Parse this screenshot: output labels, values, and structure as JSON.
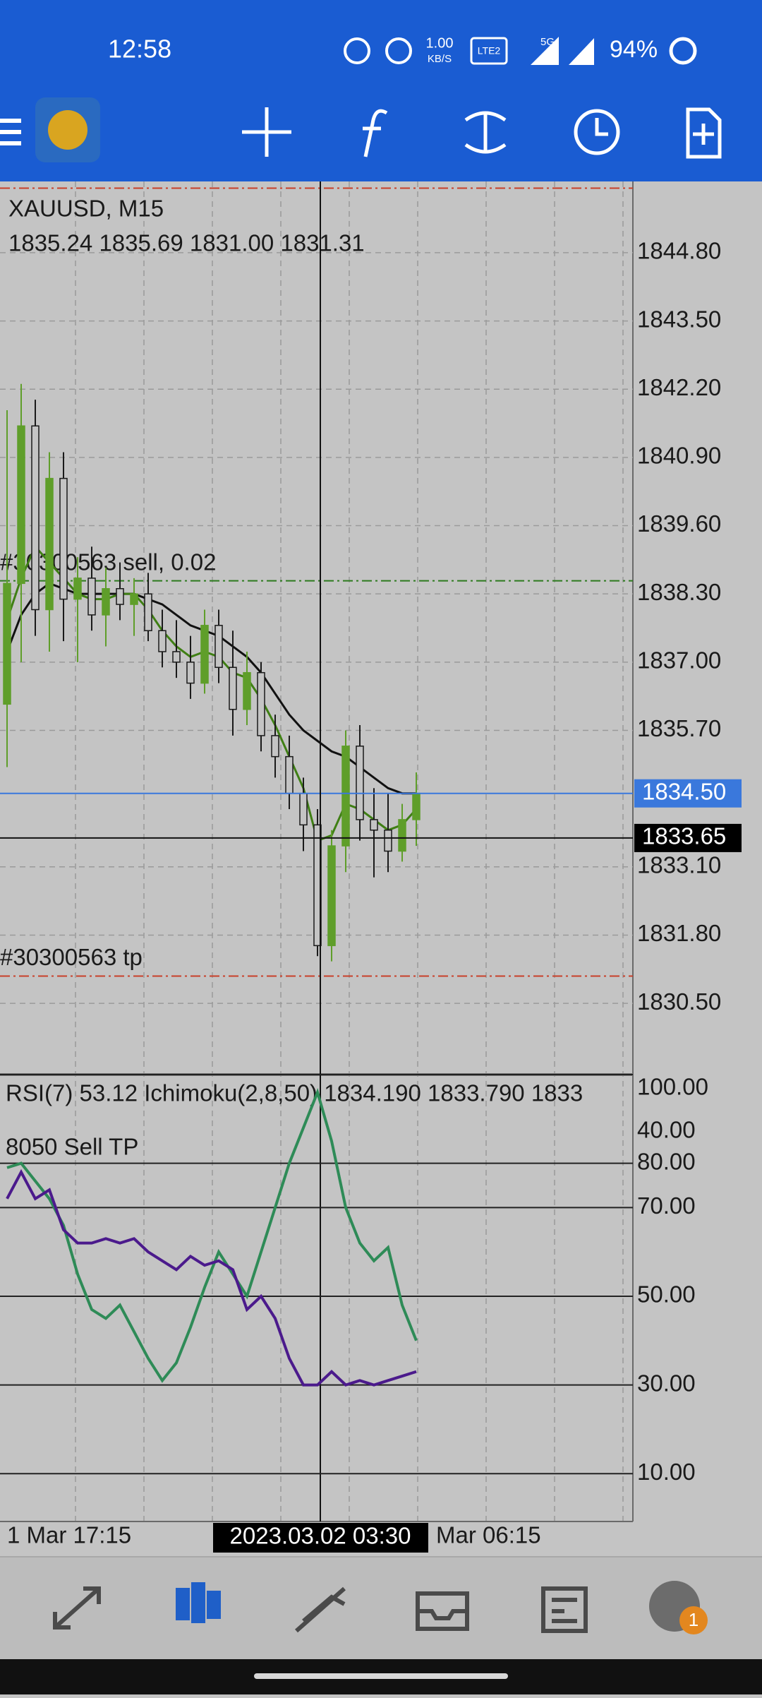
{
  "status_bar": {
    "time": "12:58",
    "speed_value": "1.00",
    "speed_unit": "KB/S",
    "network": "5G",
    "volte": "LTE2",
    "battery": "94%"
  },
  "chart_info": {
    "symbol": "XAUUSD, M15",
    "ohlc": "1835.24 1835.69 1831.00 1831.31"
  },
  "chart_data": [
    {
      "type": "candlestick",
      "ylim": [
        1829.17,
        1846.09
      ],
      "yticks": [
        {
          "value": 1844.8,
          "label": "1844.80"
        },
        {
          "value": 1843.5,
          "label": "1843.50"
        },
        {
          "value": 1842.2,
          "label": "1842.20"
        },
        {
          "value": 1840.9,
          "label": "1840.90"
        },
        {
          "value": 1839.6,
          "label": "1839.60"
        },
        {
          "value": 1838.3,
          "label": "1838.30"
        },
        {
          "value": 1837,
          "label": "1837.00"
        },
        {
          "value": 1835.7,
          "label": "1835.70"
        },
        {
          "value": 1833.1,
          "label": "1833.10"
        },
        {
          "value": 1831.8,
          "label": "1831.80"
        },
        {
          "value": 1830.5,
          "label": "1830.50"
        }
      ],
      "grid": true,
      "up_color": "#5f9e2a",
      "down_color": "#1a1a1a",
      "open": [
        1836.2,
        1838.5,
        1841.5,
        1838.0,
        1840.5,
        1838.2,
        1838.6,
        1837.9,
        1838.4,
        1838.1,
        1838.3,
        1837.6,
        1837.2,
        1837.0,
        1836.6,
        1837.7,
        1836.9,
        1836.1,
        1836.8,
        1835.6,
        1835.2,
        1834.5,
        1833.9,
        1831.6,
        1833.5,
        1835.4,
        1834.0,
        1833.8,
        1833.4,
        1834.0
      ],
      "high": [
        1841.8,
        1842.3,
        1842.0,
        1841.0,
        1841.0,
        1839.0,
        1839.2,
        1838.8,
        1838.9,
        1838.6,
        1838.7,
        1838.0,
        1837.8,
        1837.5,
        1838.0,
        1838.0,
        1837.6,
        1837.2,
        1837.0,
        1836.0,
        1835.6,
        1834.8,
        1834.2,
        1833.8,
        1835.7,
        1835.8,
        1834.6,
        1834.5,
        1834.3,
        1834.9
      ],
      "low": [
        1835.0,
        1837.0,
        1837.5,
        1837.2,
        1837.4,
        1837.0,
        1837.6,
        1837.3,
        1837.8,
        1837.5,
        1837.4,
        1836.9,
        1836.7,
        1836.3,
        1836.4,
        1836.6,
        1835.6,
        1835.8,
        1835.3,
        1834.8,
        1834.2,
        1833.4,
        1831.4,
        1831.3,
        1833.0,
        1833.6,
        1832.9,
        1833.0,
        1833.2,
        1833.5
      ],
      "close": [
        1838.5,
        1841.5,
        1838.0,
        1840.5,
        1838.2,
        1838.6,
        1837.9,
        1838.4,
        1838.1,
        1838.3,
        1837.6,
        1837.2,
        1837.0,
        1836.6,
        1837.7,
        1836.9,
        1836.1,
        1836.8,
        1835.6,
        1835.2,
        1834.5,
        1833.9,
        1831.6,
        1833.5,
        1835.4,
        1834.0,
        1833.8,
        1833.4,
        1834.0,
        1834.5
      ],
      "lines": [
        {
          "color": "#111111",
          "values": [
            1837.2,
            1837.9,
            1838.3,
            1838.5,
            1838.4,
            1838.3,
            1838.3,
            1838.3,
            1838.3,
            1838.3,
            1838.2,
            1838.1,
            1837.9,
            1837.7,
            1837.6,
            1837.5,
            1837.3,
            1837.1,
            1836.8,
            1836.4,
            1836.0,
            1835.7,
            1835.5,
            1835.3,
            1835.2,
            1835.0,
            1834.8,
            1834.6,
            1834.5,
            1834.5
          ]
        },
        {
          "color": "#3f7f14",
          "values": [
            1837.8,
            1838.6,
            1839.2,
            1838.9,
            1838.6,
            1838.3,
            1838.2,
            1838.2,
            1838.3,
            1838.3,
            1838.0,
            1837.6,
            1837.3,
            1837.1,
            1837.2,
            1837.1,
            1836.8,
            1836.7,
            1836.3,
            1835.8,
            1835.2,
            1834.6,
            1833.6,
            1833.7,
            1834.3,
            1834.2,
            1834.0,
            1833.8,
            1833.9,
            1834.2
          ]
        }
      ],
      "levels": [
        {
          "label": "#30300563 sell, 0.02",
          "value": 1838.55,
          "color": "#2d7a1e"
        },
        {
          "label": "#30300563 tp",
          "value": 1831.02,
          "color": "#c8402a"
        },
        {
          "value": 1846.03,
          "color": "#c8402a"
        }
      ],
      "bid": {
        "value": 1834.5,
        "label": "1834.50",
        "color": "#3a78dc"
      },
      "crosshair": {
        "value": 1833.65,
        "label": "1833.65"
      },
      "time_labels": [
        "1 Mar 17:15",
        "Mar 06:15"
      ],
      "crosshair_time": "2023.03.02 03:30"
    },
    {
      "type": "line",
      "title": "RSI(7) 53.12 Ichimoku(2,8,50) 1834.190 1833.790 1833",
      "annotation": "8050 Sell TP",
      "overlay_label": "40.00",
      "ylim": [
        0,
        100
      ],
      "yticks": [
        {
          "value": 100,
          "label": "100.00"
        },
        {
          "value": 80,
          "label": "80.00"
        },
        {
          "value": 70,
          "label": "70.00"
        },
        {
          "value": 50,
          "label": "50.00"
        },
        {
          "value": 30,
          "label": "30.00"
        },
        {
          "value": 10,
          "label": "10.00"
        }
      ],
      "lines": [
        {
          "color": "#2e8b57",
          "values": [
            79,
            80,
            76,
            72,
            66,
            55,
            47,
            45,
            48,
            42,
            36,
            31,
            35,
            43,
            52,
            60,
            55,
            50,
            60,
            70,
            80,
            88,
            96,
            85,
            70,
            62,
            58,
            61,
            48,
            40
          ]
        },
        {
          "color": "#4b1a8c",
          "values": [
            72,
            78,
            72,
            74,
            65,
            62,
            62,
            63,
            62,
            63,
            60,
            58,
            56,
            59,
            57,
            58,
            56,
            47,
            50,
            45,
            36,
            30,
            30,
            33,
            30,
            31,
            30,
            31,
            32,
            33
          ]
        }
      ]
    }
  ],
  "bottom_nav": {
    "badge": "1"
  }
}
